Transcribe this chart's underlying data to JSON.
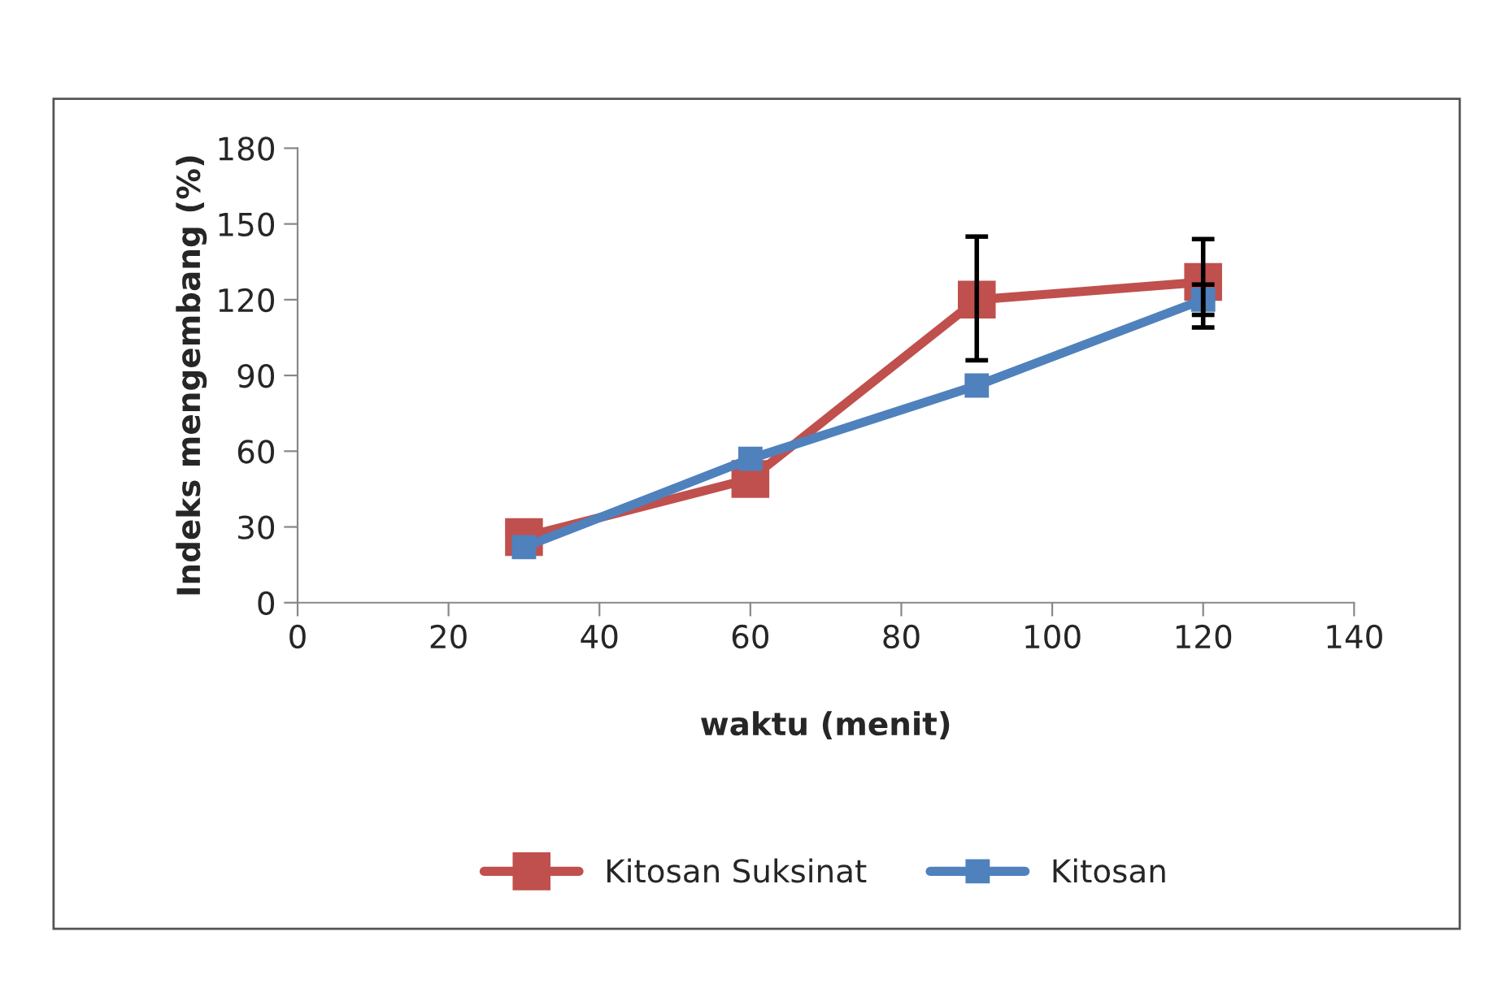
{
  "chart_data": {
    "type": "line",
    "xlabel": "waktu (menit)",
    "ylabel": "Indeks mengembang (%)",
    "x": [
      30,
      60,
      90,
      120
    ],
    "series": [
      {
        "name": "Kitosan Suksinat",
        "color": "#c0504d",
        "values": [
          26,
          49,
          120,
          127
        ],
        "errors": [
          null,
          null,
          [
            96,
            145
          ],
          [
            109,
            144
          ]
        ]
      },
      {
        "name": "Kitosan",
        "color": "#4f81bd",
        "values": [
          22,
          57,
          86,
          120
        ],
        "errors": [
          null,
          null,
          null,
          [
            114,
            126
          ]
        ]
      }
    ],
    "xlim": [
      0,
      140
    ],
    "xticks": [
      0,
      20,
      40,
      60,
      80,
      100,
      120,
      140
    ],
    "ylim": [
      0,
      180
    ],
    "yticks": [
      0,
      30,
      60,
      90,
      120,
      150,
      180
    ],
    "grid": false,
    "legend": "bottom",
    "marker": "square",
    "line_style": "solid"
  }
}
